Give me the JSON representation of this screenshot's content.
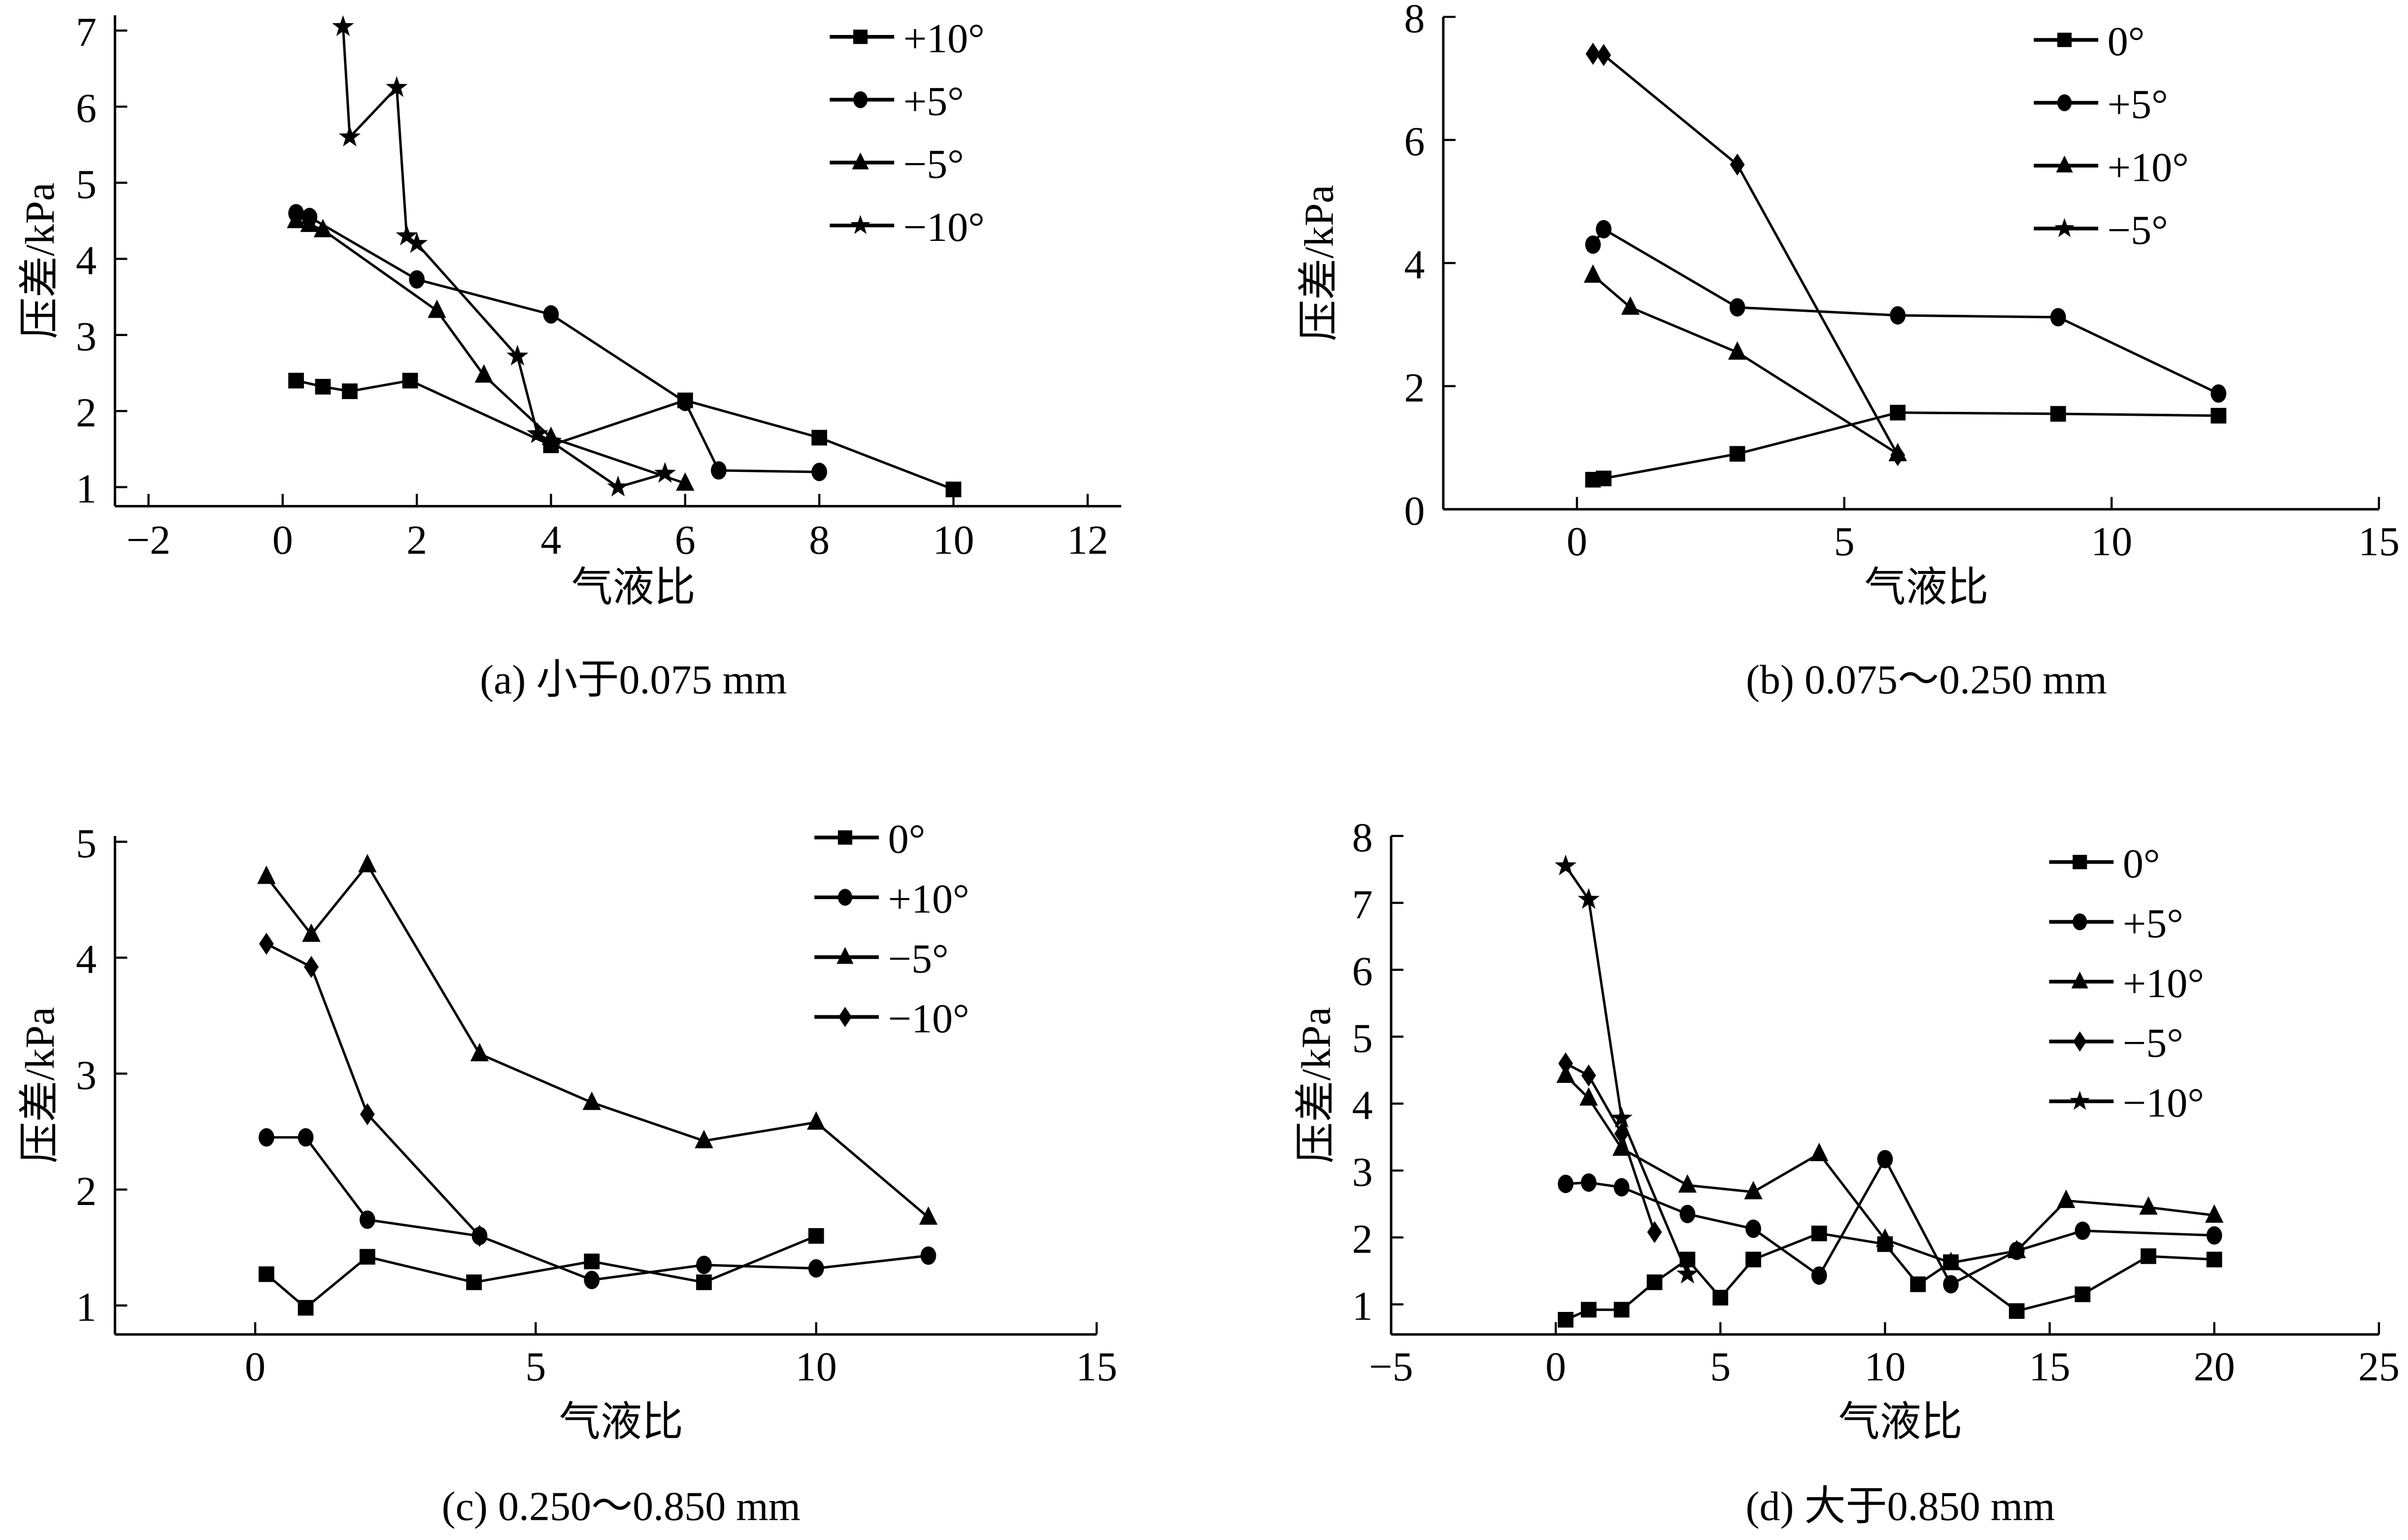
{
  "chart_data": [
    {
      "type": "line",
      "caption": "(a)  小于0.075 mm",
      "xlabel": "气液比",
      "ylabel": "压差/kPa",
      "xlim": [
        -2.5,
        12.5
      ],
      "ylim": [
        0.75,
        7.2
      ],
      "xticks": [
        -2,
        0,
        2,
        4,
        6,
        8,
        10,
        12
      ],
      "yticks": [
        1,
        2,
        3,
        4,
        5,
        6,
        7
      ],
      "legend_position": "top-right",
      "series": [
        {
          "name": "+10°",
          "marker": "square",
          "x": [
            0.2,
            0.6,
            1,
            1.9,
            4,
            6,
            8,
            10
          ],
          "y": [
            2.4,
            2.32,
            2.26,
            2.4,
            1.55,
            2.14,
            1.65,
            0.97
          ]
        },
        {
          "name": "+5°",
          "marker": "circle",
          "x": [
            0.2,
            0.4,
            2,
            4,
            6,
            6.5,
            8
          ],
          "y": [
            4.6,
            4.55,
            3.73,
            3.27,
            2.12,
            1.22,
            1.2
          ]
        },
        {
          "name": "−5°",
          "marker": "triangle",
          "x": [
            0.2,
            0.4,
            0.6,
            2.3,
            3,
            4,
            6
          ],
          "y": [
            4.5,
            4.45,
            4.38,
            3.32,
            2.47,
            1.65,
            1.05
          ]
        },
        {
          "name": "−10°",
          "marker": "star",
          "x": [
            0.9,
            1,
            1.7,
            1.85,
            2,
            3.5,
            3.8,
            4,
            5,
            5.7
          ],
          "y": [
            7.05,
            5.6,
            6.25,
            4.3,
            4.2,
            2.72,
            1.7,
            1.6,
            1.0,
            1.18
          ]
        }
      ]
    },
    {
      "type": "line",
      "caption": "(b)  0.075～0.250 mm",
      "xlabel": "气液比",
      "ylabel": "压差/kPa",
      "xlim": [
        -2.5,
        15
      ],
      "ylim": [
        0,
        8
      ],
      "xticks": [
        0,
        5,
        10,
        15
      ],
      "yticks": [
        0,
        2,
        4,
        6,
        8
      ],
      "legend_position": "top-right",
      "series": [
        {
          "name": "0°",
          "marker": "square",
          "x": [
            0.3,
            0.5,
            3,
            6,
            9,
            12
          ],
          "y": [
            0.48,
            0.5,
            0.9,
            1.57,
            1.55,
            1.52
          ]
        },
        {
          "name": "+5°",
          "marker": "circle",
          "x": [
            0.3,
            0.5,
            3,
            6,
            9,
            12
          ],
          "y": [
            4.3,
            4.55,
            3.28,
            3.15,
            3.12,
            1.88
          ]
        },
        {
          "name": "+10°",
          "marker": "triangle",
          "x": [
            0.3,
            1,
            3,
            6
          ],
          "y": [
            3.8,
            3.28,
            2.55,
            0.9
          ]
        },
        {
          "name": "−5°",
          "marker": "star",
          "plot_marker": "diamond",
          "x": [
            0.3,
            0.5,
            3,
            6
          ],
          "y": [
            7.4,
            7.38,
            5.6,
            0.88
          ]
        }
      ]
    },
    {
      "type": "line",
      "caption": "(c) 0.250～0.850 mm",
      "xlabel": "气液比",
      "ylabel": "压差/kPa",
      "xlim": [
        -2.5,
        15
      ],
      "ylim": [
        0.75,
        5.05
      ],
      "xticks": [
        0,
        5,
        10,
        15
      ],
      "yticks": [
        1,
        2,
        3,
        4,
        5
      ],
      "legend_position": "top-right",
      "series": [
        {
          "name": "0°",
          "marker": "square",
          "x": [
            0.2,
            0.9,
            2,
            3.9,
            6,
            8,
            10
          ],
          "y": [
            1.27,
            0.98,
            1.42,
            1.2,
            1.38,
            1.2,
            1.6
          ]
        },
        {
          "name": "+10°",
          "marker": "circle",
          "x": [
            0.2,
            0.9,
            2,
            4,
            6,
            8,
            10,
            12
          ],
          "y": [
            2.45,
            2.45,
            1.74,
            1.6,
            1.22,
            1.35,
            1.32,
            1.43
          ]
        },
        {
          "name": "−5°",
          "marker": "triangle",
          "x": [
            0.2,
            1,
            2,
            4,
            6,
            8,
            10,
            12
          ],
          "y": [
            4.7,
            4.2,
            4.8,
            3.17,
            2.75,
            2.42,
            2.58,
            1.76
          ]
        },
        {
          "name": "−10°",
          "marker": "diamond",
          "x": [
            0.2,
            1,
            2,
            4
          ],
          "y": [
            4.12,
            3.92,
            2.65,
            1.6
          ]
        }
      ]
    },
    {
      "type": "line",
      "caption": "(d)  大于0.850 mm",
      "xlabel": "气液比",
      "ylabel": "压差/kPa",
      "xlim": [
        -5,
        25
      ],
      "ylim": [
        0.55,
        8
      ],
      "xticks": [
        -5,
        0,
        5,
        10,
        15,
        20,
        25
      ],
      "yticks": [
        1,
        2,
        3,
        4,
        5,
        6,
        7,
        8
      ],
      "legend_position": "top-right",
      "series": [
        {
          "name": "0°",
          "marker": "square",
          "x": [
            0.3,
            1,
            2,
            3,
            4,
            5,
            6,
            8,
            10,
            11,
            12,
            14,
            16,
            18,
            20
          ],
          "y": [
            0.77,
            0.92,
            0.92,
            1.33,
            1.67,
            1.1,
            1.67,
            2.06,
            1.9,
            1.3,
            1.63,
            0.9,
            1.15,
            1.72,
            1.67
          ]
        },
        {
          "name": "+5°",
          "marker": "circle",
          "x": [
            0.3,
            1,
            2,
            4,
            6,
            8,
            10,
            12,
            14,
            16,
            20
          ],
          "y": [
            2.8,
            2.82,
            2.75,
            2.35,
            2.13,
            1.43,
            3.17,
            1.3,
            1.8,
            2.1,
            2.03
          ]
        },
        {
          "name": "+10°",
          "marker": "triangle",
          "x": [
            0.3,
            1,
            2,
            4,
            6,
            8,
            10,
            12,
            14,
            15.5,
            18,
            20
          ],
          "y": [
            4.42,
            4.08,
            3.33,
            2.78,
            2.68,
            3.25,
            1.97,
            1.62,
            1.8,
            2.55,
            2.45,
            2.33
          ]
        },
        {
          "name": "−5°",
          "marker": "diamond",
          "x": [
            0.3,
            1,
            2,
            3
          ],
          "y": [
            4.6,
            4.42,
            3.55,
            2.08
          ]
        },
        {
          "name": "−10°",
          "marker": "star",
          "x": [
            0.3,
            1,
            2,
            4
          ],
          "y": [
            7.55,
            7.05,
            3.78,
            1.45
          ]
        }
      ]
    }
  ]
}
